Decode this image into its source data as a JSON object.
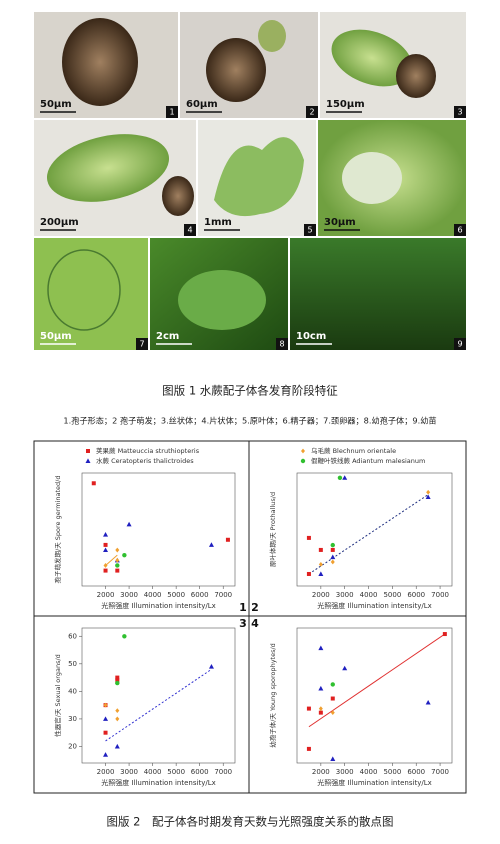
{
  "plate1": {
    "panels": [
      {
        "scale": "50μm",
        "number": "1"
      },
      {
        "scale": "60μm",
        "number": "2"
      },
      {
        "scale": "150μm",
        "number": "3"
      },
      {
        "scale": "200μm",
        "number": "4"
      },
      {
        "scale": "1mm",
        "number": "5"
      },
      {
        "scale": "30μm",
        "number": "6"
      },
      {
        "scale": "50μm",
        "number": "7"
      },
      {
        "scale": "2cm",
        "number": "8"
      },
      {
        "scale": "10cm",
        "number": "9"
      }
    ],
    "caption": "图版 1 水蕨配子体各发育阶段特征",
    "legend": "1.孢子形态；2 孢子萌发；3.丝状体；4.片状体；5.原叶体；6.精子器；7.颈卵器；8.幼孢子体；9.幼苗"
  },
  "chart_data": [
    {
      "type": "scatter",
      "panel": "1",
      "xlabel": "光照强度 Illumination intensity/Lx",
      "ylabel": "孢子萌发期/天 Spore germinated/d",
      "xlim": [
        1000,
        7500
      ],
      "xticks": [
        2000,
        3000,
        4000,
        5000,
        6000,
        7000
      ],
      "ylim": [
        0,
        22
      ],
      "series": [
        {
          "name": "荚果蕨 Matteuccia struthiopteris",
          "color": "#e02020",
          "marker": "square",
          "x": [
            1500,
            2000,
            2000,
            2500,
            7200
          ],
          "values": [
            20,
            8,
            3,
            3,
            9
          ]
        },
        {
          "name": "水蕨 Ceratopteris thalictroides",
          "color": "#2020c0",
          "marker": "triangle",
          "x": [
            2000,
            2500,
            3000,
            6500,
            2000
          ],
          "values": [
            10,
            5,
            12,
            8,
            7
          ]
        },
        {
          "color": "#f0a030",
          "marker": "diamond",
          "x": [
            2000,
            2500,
            2500
          ],
          "values": [
            4,
            7,
            5
          ]
        },
        {
          "color": "#30c030",
          "marker": "circle",
          "x": [
            2800,
            2500
          ],
          "values": [
            6,
            4
          ]
        }
      ],
      "trend": {
        "color": "#f0a030",
        "style": "solid",
        "x": [
          2000,
          2500
        ],
        "values": [
          4,
          6
        ]
      }
    },
    {
      "type": "scatter",
      "panel": "2",
      "xlabel": "光照强度 Illumination intensity/Lx",
      "ylabel": "原叶体期/天 Prothallus/d",
      "xlim": [
        1000,
        7500
      ],
      "xticks": [
        2000,
        3000,
        4000,
        5000,
        6000,
        7000
      ],
      "ylim": [
        5,
        52
      ],
      "series": [
        {
          "color": "#e02020",
          "marker": "square",
          "x": [
            1500,
            2000,
            2500,
            1500
          ],
          "values": [
            25,
            20,
            20,
            10
          ]
        },
        {
          "color": "#2020c0",
          "marker": "triangle",
          "x": [
            2500,
            3000,
            6500,
            2000
          ],
          "values": [
            17,
            50,
            42,
            10
          ]
        },
        {
          "name": "乌毛蕨 Blechnum orientale",
          "color": "#f0a030",
          "marker": "diamond",
          "x": [
            2000,
            2500,
            6500
          ],
          "values": [
            14,
            15,
            44
          ]
        },
        {
          "name": "假鞭叶铁线蕨 Adiantum malesianum",
          "color": "#30c030",
          "marker": "circle",
          "x": [
            2800,
            2500
          ],
          "values": [
            50,
            22
          ]
        }
      ],
      "trend": {
        "color": "#203080",
        "style": "dashed",
        "x": [
          1500,
          6500
        ],
        "values": [
          10,
          43
        ]
      }
    },
    {
      "type": "scatter",
      "panel": "3",
      "xlabel": "光照强度 Illumination intensity/Lx",
      "ylabel": "性器官/天 Sexual organs/d",
      "xlim": [
        1000,
        7500
      ],
      "xticks": [
        2000,
        3000,
        4000,
        5000,
        6000,
        7000
      ],
      "ylim": [
        14,
        63
      ],
      "yticks": [
        20,
        30,
        40,
        50,
        60
      ],
      "series": [
        {
          "color": "#e02020",
          "marker": "square",
          "x": [
            2000,
            2500,
            2500,
            2000
          ],
          "values": [
            35,
            45,
            44,
            25
          ]
        },
        {
          "color": "#2020c0",
          "marker": "triangle",
          "x": [
            2000,
            2000,
            2500,
            6500
          ],
          "values": [
            30,
            17,
            20,
            49
          ]
        },
        {
          "color": "#f0a030",
          "marker": "diamond",
          "x": [
            2000,
            2500,
            2500
          ],
          "values": [
            35,
            33,
            30
          ]
        },
        {
          "color": "#30c030",
          "marker": "circle",
          "x": [
            2800,
            2500
          ],
          "values": [
            60,
            43
          ]
        }
      ],
      "trend": {
        "color": "#3030d0",
        "style": "dashed",
        "x": [
          2000,
          6500
        ],
        "values": [
          22,
          48
        ]
      }
    },
    {
      "type": "scatter",
      "panel": "4",
      "xlabel": "光照强度 Illumination intensity/Lx",
      "ylabel": "幼孢子体/天 Young sporophytes/d",
      "xlim": [
        1000,
        7500
      ],
      "xticks": [
        2000,
        3000,
        4000,
        5000,
        6000,
        7000
      ],
      "ylim": [
        33,
        100
      ],
      "series": [
        {
          "color": "#e02020",
          "marker": "square",
          "x": [
            1500,
            1500,
            2000,
            2500,
            7200
          ],
          "values": [
            60,
            40,
            58,
            65,
            97
          ]
        },
        {
          "color": "#2020c0",
          "marker": "triangle",
          "x": [
            2000,
            2500,
            3000,
            6500,
            2000
          ],
          "values": [
            90,
            35,
            80,
            63,
            70
          ]
        },
        {
          "color": "#f0a030",
          "marker": "diamond",
          "x": [
            2000,
            2500
          ],
          "values": [
            60,
            58
          ]
        },
        {
          "color": "#30c030",
          "marker": "circle",
          "x": [
            2500
          ],
          "values": [
            72
          ]
        }
      ],
      "trend": {
        "color": "#e03030",
        "style": "solid",
        "x": [
          1500,
          7200
        ],
        "values": [
          51,
          97
        ]
      }
    }
  ],
  "figure2_caption": "图版 2　配子体各时期发育天数与光照强度关系的散点图"
}
